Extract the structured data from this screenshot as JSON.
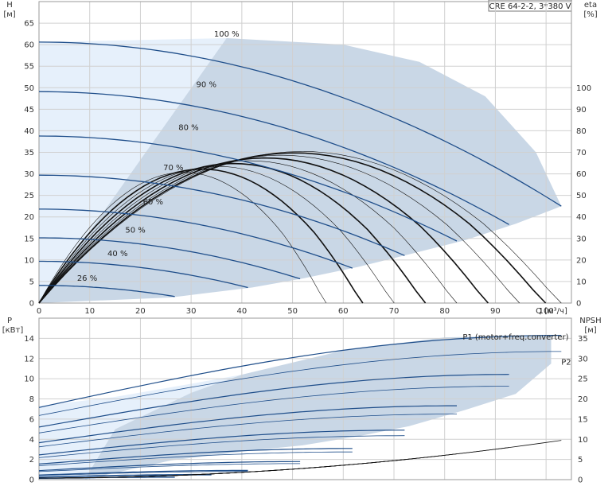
{
  "header": {
    "model": "CRE 64-2-2, 3*380 V"
  },
  "colors": {
    "frame": "#9a9a9a",
    "grid": "#d0d0d0",
    "region_main": "#c9d7e6",
    "region_light": "#e6f0fb",
    "speed_curve": "#1f4e8a",
    "eff_curve": "#111111"
  },
  "chart_data": [
    {
      "type": "line",
      "panel": "head",
      "grid": true,
      "xlim": [
        0,
        105
      ],
      "ylim": [
        0,
        70
      ],
      "y2lim": [
        0,
        140
      ],
      "x_ticks": [
        "0",
        "10",
        "20",
        "30",
        "40",
        "50",
        "60",
        "70",
        "80",
        "90",
        "100"
      ],
      "x_tick_values": [
        0,
        10,
        20,
        30,
        40,
        50,
        60,
        70,
        80,
        90,
        100
      ],
      "y_ticks": [
        "0",
        "5",
        "10",
        "15",
        "20",
        "25",
        "30",
        "35",
        "40",
        "45",
        "50",
        "55",
        "60",
        "65"
      ],
      "y_tick_values": [
        0,
        5,
        10,
        15,
        20,
        25,
        30,
        35,
        40,
        45,
        50,
        55,
        60,
        65
      ],
      "y2_ticks": [
        "0",
        "10",
        "20",
        "30",
        "40",
        "50",
        "60",
        "70",
        "80",
        "90",
        "100"
      ],
      "y2_tick_values": [
        0,
        10,
        20,
        30,
        40,
        50,
        60,
        70,
        80,
        90,
        100
      ],
      "ylabel": "H",
      "yunit": "[м]",
      "xlabel": "Q [м³/ч]",
      "y2label": "eta",
      "y2unit": "[%]",
      "speed_curves": [
        {
          "name": "100 %",
          "speed": 1.0,
          "label_at": [
            37,
            61.5
          ]
        },
        {
          "name": "90 %",
          "speed": 0.9,
          "label_at": [
            33,
            49.8
          ]
        },
        {
          "name": "80 %",
          "speed": 0.8,
          "label_at": [
            29.5,
            39.8
          ]
        },
        {
          "name": "70 %",
          "speed": 0.7,
          "label_at": [
            26.5,
            30.5
          ]
        },
        {
          "name": "60 %",
          "speed": 0.6,
          "label_at": [
            22.5,
            22.5
          ]
        },
        {
          "name": "50 %",
          "speed": 0.5,
          "label_at": [
            19,
            16
          ]
        },
        {
          "name": "40 %",
          "speed": 0.4,
          "label_at": [
            15.5,
            10.5
          ]
        },
        {
          "name": "26 %",
          "speed": 0.26,
          "label_at": [
            9.5,
            4.8
          ]
        }
      ],
      "operating_region": [
        [
          0,
          0
        ],
        [
          26,
          1.3
        ],
        [
          42,
          3.6
        ],
        [
          52,
          5.7
        ],
        [
          63,
          8.4
        ],
        [
          73,
          11.3
        ],
        [
          84,
          14.6
        ],
        [
          94,
          18.4
        ],
        [
          103,
          22.5
        ],
        [
          98,
          35
        ],
        [
          88,
          48
        ],
        [
          75,
          56
        ],
        [
          60,
          60
        ],
        [
          45,
          61
        ],
        [
          37,
          61.5
        ]
      ],
      "light_region": [
        [
          0,
          60.6
        ],
        [
          37,
          61.5
        ],
        [
          30,
          45
        ],
        [
          22,
          30
        ],
        [
          14,
          17
        ],
        [
          6,
          6
        ],
        [
          0,
          0
        ]
      ]
    },
    {
      "type": "line",
      "panel": "power",
      "grid": true,
      "xlim": [
        0,
        105
      ],
      "ylim": [
        0,
        16
      ],
      "y2lim": [
        0,
        40
      ],
      "y_ticks": [
        "0",
        "2",
        "4",
        "6",
        "8",
        "10",
        "12",
        "14"
      ],
      "y_tick_values": [
        0,
        2,
        4,
        6,
        8,
        10,
        12,
        14
      ],
      "y2_ticks": [
        "0",
        "5",
        "10",
        "15",
        "20",
        "25",
        "30",
        "35"
      ],
      "y2_tick_values": [
        0,
        5,
        10,
        15,
        20,
        25,
        30,
        35
      ],
      "ylabel": "P",
      "yunit": "[кВт]",
      "y2label": "NPSH",
      "y2unit": "[м]",
      "series": [
        {
          "name": "P1 (motor+freq.converter)",
          "label_at": [
            94,
            14.2
          ]
        },
        {
          "name": "P2",
          "label_at": [
            103,
            11.7
          ]
        }
      ],
      "operating_region": [
        [
          9,
          0
        ],
        [
          26,
          1.9
        ],
        [
          42,
          2.9
        ],
        [
          52,
          3.4
        ],
        [
          63,
          4.3
        ],
        [
          73,
          5.3
        ],
        [
          84,
          6.9
        ],
        [
          94,
          8.5
        ],
        [
          101,
          11.5
        ],
        [
          101,
          14.3
        ],
        [
          80,
          14.1
        ],
        [
          60,
          12.8
        ],
        [
          40,
          10.4
        ],
        [
          30,
          8.6
        ],
        [
          15,
          5
        ],
        [
          9,
          0
        ]
      ],
      "light_region": [
        [
          0,
          7.3
        ],
        [
          15,
          8.2
        ],
        [
          30,
          9.5
        ],
        [
          40,
          10.4
        ],
        [
          30,
          8.6
        ],
        [
          15,
          5
        ],
        [
          9,
          0
        ],
        [
          0,
          0
        ]
      ]
    }
  ]
}
